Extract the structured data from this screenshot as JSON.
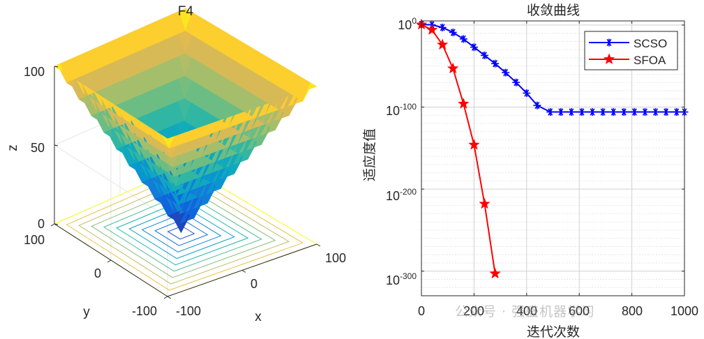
{
  "chart_data": [
    {
      "type": "surface3d",
      "title": "F4",
      "function": "z = max(|x|, |y|)",
      "xlabel": "x",
      "ylabel": "y",
      "zlabel": "z",
      "x_range": [
        -100,
        100
      ],
      "y_range": [
        -100,
        100
      ],
      "z_range": [
        0,
        100
      ],
      "x_ticks": [
        "-100",
        "0",
        "100"
      ],
      "y_ticks": [
        "-100",
        "0",
        "100"
      ],
      "z_ticks": [
        "0",
        "50",
        "100"
      ],
      "contour_levels": [
        10,
        20,
        30,
        40,
        50,
        60,
        70,
        80,
        90,
        100
      ],
      "colormap": "parula"
    },
    {
      "type": "line",
      "title": "收敛曲线",
      "xlabel": "迭代次数",
      "ylabel": "适应度值",
      "yscale": "log",
      "xlim": [
        0,
        1000
      ],
      "ylim_exp": [
        -330,
        5
      ],
      "x_ticks": [
        "0",
        "200",
        "400",
        "600",
        "800",
        "1000"
      ],
      "y_ticks": [
        {
          "exp": 0,
          "base": "10",
          "power": "0"
        },
        {
          "exp": -100,
          "base": "10",
          "power": "-100"
        },
        {
          "exp": -200,
          "base": "10",
          "power": "-200"
        },
        {
          "exp": -300,
          "base": "10",
          "power": "-300"
        }
      ],
      "legend_position": "top-right",
      "series": [
        {
          "name": "SCSO",
          "color": "#0000ff",
          "marker": "asterisk",
          "x": [
            0,
            40,
            80,
            120,
            160,
            200,
            240,
            280,
            320,
            360,
            400,
            440,
            490,
            530,
            570,
            610,
            650,
            690,
            730,
            770,
            810,
            850,
            890,
            930,
            970,
            1000
          ],
          "log10_y": [
            0.7,
            0.2,
            -3,
            -9,
            -17,
            -27,
            -37,
            -47,
            -58,
            -70,
            -83,
            -98,
            -106,
            -106,
            -106,
            -106,
            -106,
            -106,
            -106,
            -106,
            -106,
            -106,
            -106,
            -106,
            -106,
            -106
          ]
        },
        {
          "name": "SFOA",
          "color": "#ff0000",
          "marker": "pentagram",
          "x": [
            0,
            40,
            80,
            120,
            160,
            200,
            240,
            280
          ],
          "log10_y": [
            0.5,
            -6,
            -24,
            -53,
            -96,
            -146,
            -218,
            -303
          ]
        }
      ]
    }
  ],
  "watermark": "公众号 · 强盛机器学习"
}
